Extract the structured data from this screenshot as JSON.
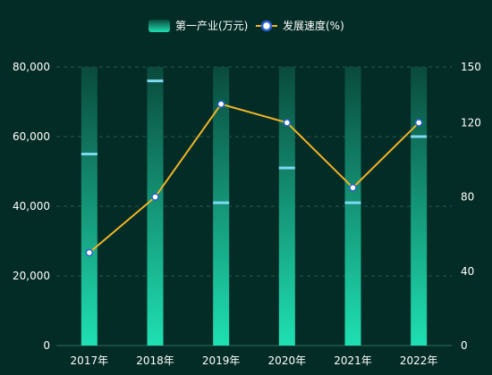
{
  "colors": {
    "background": "#042c26",
    "bar_top": "#0a4a3c",
    "bar_bottom": "#1fe0b2",
    "bar_cap": "#7fd8f0",
    "line": "#f0b429",
    "point_fill": "#ffffff",
    "point_stroke": "#2a5fcf",
    "grid": "#1f5a4e",
    "axis": "#2e6b5e",
    "text": "#ffffff"
  },
  "legend": {
    "bar_label": "第一产业(万元)",
    "line_label": "发展速度(%)",
    "position": "top-center"
  },
  "chart_data": {
    "type": "bar",
    "categories": [
      "2017年",
      "2018年",
      "2019年",
      "2020年",
      "2021年",
      "2022年"
    ],
    "series": [
      {
        "name": "第一产业(万元)",
        "type": "bar",
        "axis": "left",
        "values": [
          55000,
          76000,
          41000,
          51000,
          41000,
          60000
        ]
      },
      {
        "name": "发展速度(%)",
        "type": "line",
        "axis": "right",
        "values": [
          50,
          80,
          130,
          120,
          85,
          120
        ]
      }
    ],
    "y_left": {
      "ylim": [
        0,
        80000
      ],
      "ticks": [
        "0",
        "20,000",
        "40,000",
        "60,000",
        "80,000"
      ]
    },
    "y_right": {
      "ylim": [
        0,
        150
      ],
      "ticks": [
        "0",
        "40",
        "80",
        "120",
        "150"
      ]
    },
    "grid": true
  }
}
